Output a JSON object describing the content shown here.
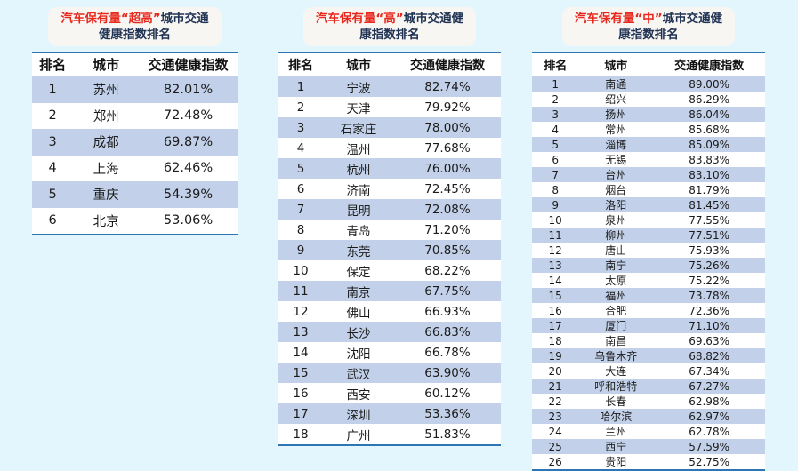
{
  "page": {
    "background_color": "#e3f6fe",
    "line_color": "#2e75b6",
    "row_highlight_color": "#c2d1e9",
    "title_red_color": "#e8271d",
    "title_dark_color": "#203354",
    "badge_background": "#f8f6f2"
  },
  "chart_data": [
    {
      "type": "table",
      "title": "汽车保有量“超高”城市交通健康指数排名",
      "title_red": "汽车保有量“超高”",
      "title_dark_line1": "城市交通",
      "title_line2": "健康指数排名",
      "columns": [
        "排名",
        "城市",
        "交通健康指数"
      ],
      "rows": [
        [
          "1",
          "苏州",
          "82.01%"
        ],
        [
          "2",
          "郑州",
          "72.48%"
        ],
        [
          "3",
          "成都",
          "69.87%"
        ],
        [
          "4",
          "上海",
          "62.46%"
        ],
        [
          "5",
          "重庆",
          "54.39%"
        ],
        [
          "6",
          "北京",
          "53.06%"
        ]
      ]
    },
    {
      "type": "table",
      "title": "汽车保有量“高”城市交通健康指数排名",
      "title_red": "汽车保有量“高”",
      "title_dark_line1": "城市交通健",
      "title_line2": "康指数排名",
      "columns": [
        "排名",
        "城市",
        "交通健康指数"
      ],
      "rows": [
        [
          "1",
          "宁波",
          "82.74%"
        ],
        [
          "2",
          "天津",
          "79.92%"
        ],
        [
          "3",
          "石家庄",
          "78.00%"
        ],
        [
          "4",
          "温州",
          "77.68%"
        ],
        [
          "5",
          "杭州",
          "76.00%"
        ],
        [
          "6",
          "济南",
          "72.45%"
        ],
        [
          "7",
          "昆明",
          "72.08%"
        ],
        [
          "8",
          "青岛",
          "71.20%"
        ],
        [
          "9",
          "东莞",
          "70.85%"
        ],
        [
          "10",
          "保定",
          "68.22%"
        ],
        [
          "11",
          "南京",
          "67.75%"
        ],
        [
          "12",
          "佛山",
          "66.93%"
        ],
        [
          "13",
          "长沙",
          "66.83%"
        ],
        [
          "14",
          "沈阳",
          "66.78%"
        ],
        [
          "15",
          "武汉",
          "63.90%"
        ],
        [
          "16",
          "西安",
          "60.12%"
        ],
        [
          "17",
          "深圳",
          "53.36%"
        ],
        [
          "18",
          "广州",
          "51.83%"
        ]
      ]
    },
    {
      "type": "table",
      "title": "汽车保有量“中”城市交通健康指数排名",
      "title_red": "汽车保有量“中”",
      "title_dark_line1": "城市交通健",
      "title_line2": "康指数排名",
      "columns": [
        "排名",
        "城市",
        "交通健康指数"
      ],
      "rows": [
        [
          "1",
          "南通",
          "89.00%"
        ],
        [
          "2",
          "绍兴",
          "86.29%"
        ],
        [
          "3",
          "扬州",
          "86.04%"
        ],
        [
          "4",
          "常州",
          "85.68%"
        ],
        [
          "5",
          "淄博",
          "85.09%"
        ],
        [
          "6",
          "无锡",
          "83.83%"
        ],
        [
          "7",
          "台州",
          "83.10%"
        ],
        [
          "8",
          "烟台",
          "81.79%"
        ],
        [
          "9",
          "洛阳",
          "81.45%"
        ],
        [
          "10",
          "泉州",
          "77.55%"
        ],
        [
          "11",
          "柳州",
          "77.51%"
        ],
        [
          "12",
          "唐山",
          "75.93%"
        ],
        [
          "13",
          "南宁",
          "75.26%"
        ],
        [
          "14",
          "太原",
          "75.22%"
        ],
        [
          "15",
          "福州",
          "73.78%"
        ],
        [
          "16",
          "合肥",
          "72.36%"
        ],
        [
          "17",
          "厦门",
          "71.10%"
        ],
        [
          "18",
          "南昌",
          "69.63%"
        ],
        [
          "19",
          "乌鲁木齐",
          "68.82%"
        ],
        [
          "20",
          "大连",
          "67.34%"
        ],
        [
          "21",
          "呼和浩特",
          "67.27%"
        ],
        [
          "22",
          "长春",
          "62.98%"
        ],
        [
          "23",
          "哈尔滨",
          "62.97%"
        ],
        [
          "24",
          "兰州",
          "62.78%"
        ],
        [
          "25",
          "西宁",
          "57.59%"
        ],
        [
          "26",
          "贵阳",
          "52.75%"
        ]
      ]
    }
  ]
}
